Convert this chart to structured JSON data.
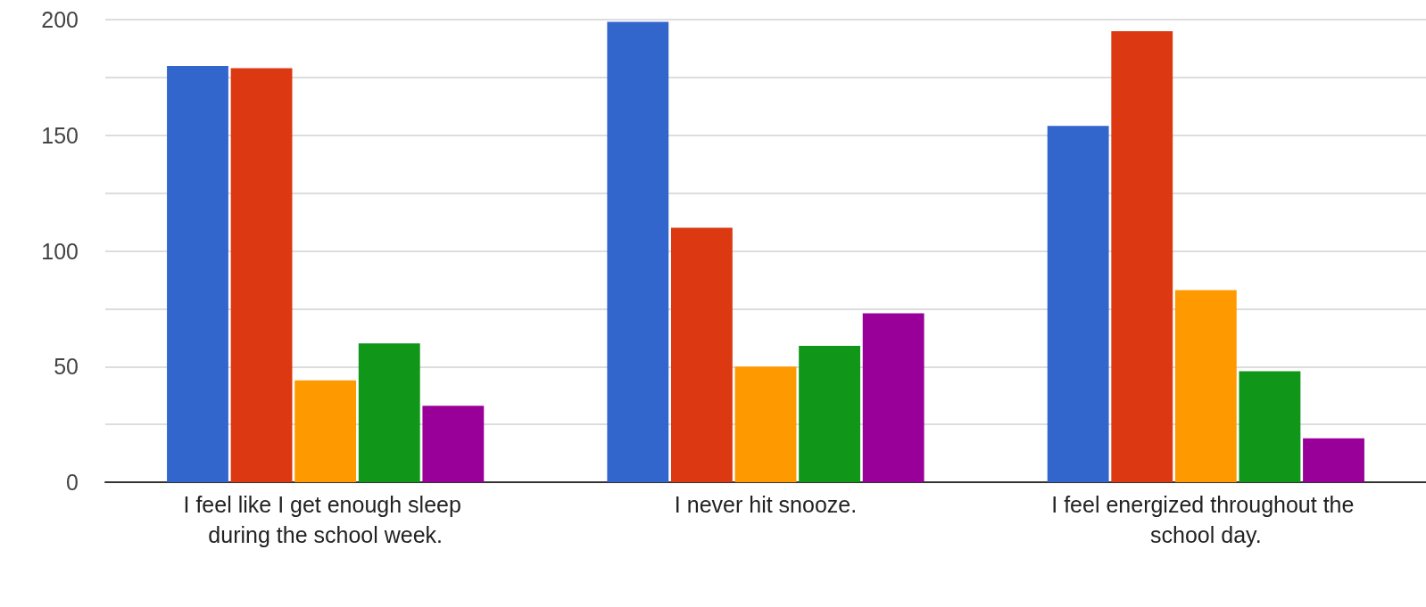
{
  "chart_data": {
    "type": "bar",
    "categories": [
      "I feel like I get enough sleep during the school week.",
      "I never hit snooze.",
      "I feel energized throughout the school day."
    ],
    "series": [
      {
        "color": "#3366cc",
        "values": [
          180,
          199,
          154
        ]
      },
      {
        "color": "#dc3912",
        "values": [
          179,
          110,
          195
        ]
      },
      {
        "color": "#ff9900",
        "values": [
          44,
          50,
          83
        ]
      },
      {
        "color": "#109618",
        "values": [
          60,
          59,
          48
        ]
      },
      {
        "color": "#990099",
        "values": [
          33,
          73,
          19
        ]
      }
    ],
    "ylim": [
      0,
      200
    ],
    "yticks": [
      0,
      {
        "value": 25,
        "label": null
      },
      50,
      {
        "value": 75,
        "label": null
      },
      100,
      {
        "value": 125,
        "label": null
      },
      150,
      {
        "value": 175,
        "label": null
      },
      200
    ],
    "grid": "y"
  }
}
